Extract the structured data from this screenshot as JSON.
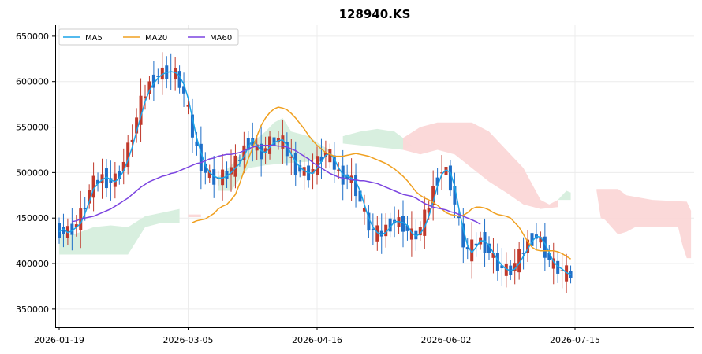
{
  "chart_data": {
    "type": "candlestick",
    "title": "128940.KS",
    "xlabel": "",
    "ylabel": "",
    "ylim": [
      330000,
      662000
    ],
    "grid": true,
    "legend_placement": "top-left",
    "x_tick_labels": [
      "2026-01-19",
      "2026-03-05",
      "2026-04-16",
      "2026-06-02",
      "2026-07-15"
    ],
    "x_tick_index": [
      0,
      30,
      60,
      90,
      120
    ],
    "y_ticks": [
      350000,
      400000,
      450000,
      500000,
      550000,
      600000,
      650000
    ],
    "y_tick_labels": [
      "350000",
      "400000",
      "450000",
      "500000",
      "550000",
      "600000",
      "650000"
    ],
    "colors": {
      "up": "#c0392b",
      "down": "#1f6fc8",
      "ma5": "#1aa3e8",
      "ma20": "#f0a020",
      "ma60": "#7b44e0",
      "cloud_bull": "#d6eedd",
      "cloud_bear": "#fbd7d7"
    },
    "legend": [
      {
        "name": "MA5",
        "color": "#1aa3e8"
      },
      {
        "name": "MA20",
        "color": "#f0a020"
      },
      {
        "name": "MA60",
        "color": "#7b44e0"
      }
    ],
    "series": [
      {
        "name": "MA5",
        "values": [
          435000,
          438000,
          434000,
          436000,
          440000,
          444000,
          455000,
          468000,
          482000,
          488000,
          492000,
          495000,
          492000,
          490000,
          494000,
          502000,
          514000,
          528000,
          545000,
          562000,
          578000,
          590000,
          598000,
          604000,
          608000,
          610000,
          611000,
          610000,
          606000,
          597000,
          582000,
          560000,
          538000,
          522000,
          508000,
          500000,
          496000,
          494000,
          494000,
          496000,
          500000,
          505000,
          510000,
          518000,
          528000,
          536000,
          530000,
          524000,
          522000,
          528000,
          533000,
          535000,
          536000,
          530000,
          520000,
          512000,
          506000,
          502000,
          500000,
          499000,
          505000,
          512000,
          519000,
          521000,
          515000,
          505000,
          498000,
          496000,
          494000,
          490000,
          480000,
          465000,
          450000,
          440000,
          434000,
          432000,
          434000,
          440000,
          446000,
          446000,
          445000,
          442000,
          434000,
          430000,
          433000,
          440000,
          452000,
          468000,
          485000,
          498000,
          503000,
          500000,
          485000,
          460000,
          438000,
          420000,
          412000,
          418000,
          425000,
          425000,
          420000,
          412000,
          404000,
          398000,
          394000,
          392000,
          394000,
          400000,
          408000,
          416000,
          424000,
          430000,
          429000,
          422000,
          412000,
          402000,
          397000,
          394000,
          390000,
          388000
        ],
        "first_index": 0
      },
      {
        "name": "MA20",
        "values": [
          445000,
          447000,
          448000,
          449000,
          452000,
          455000,
          460000,
          463000,
          465000,
          470000,
          476000,
          488000,
          502000,
          515000,
          527000,
          540000,
          552000,
          560000,
          566000,
          570000,
          572000,
          571000,
          569000,
          565000,
          560000,
          554000,
          548000,
          541000,
          535000,
          530000,
          526000,
          522000,
          520000,
          518000,
          518000,
          518000,
          519000,
          520000,
          521000,
          520000,
          519000,
          518000,
          516000,
          514000,
          512000,
          510000,
          507000,
          504000,
          500000,
          496000,
          491000,
          485000,
          479000,
          475000,
          472000,
          470000,
          467000,
          464000,
          460000,
          456000,
          454000,
          453000,
          452000,
          453000,
          456000,
          460000,
          462000,
          462000,
          461000,
          459000,
          456000,
          454000,
          453000,
          452000,
          450000,
          445000,
          440000,
          432000,
          424000,
          418000,
          415000,
          414000,
          414000,
          414000,
          414000,
          413000,
          411000,
          408000,
          405000
        ],
        "first_index": 31
      },
      {
        "name": "MA60",
        "values": [
          446000,
          447000,
          449000,
          450000,
          451000,
          452000,
          454000,
          456000,
          458000,
          460000,
          463000,
          466000,
          469000,
          472000,
          476000,
          480000,
          484000,
          487000,
          490000,
          492000,
          494000,
          496000,
          497000,
          499000,
          500000,
          502000,
          504000,
          506000,
          508000,
          510000,
          511000,
          513000,
          515000,
          516000,
          518000,
          519000,
          520000,
          520000,
          521000,
          522000,
          524000,
          526000,
          528000,
          529000,
          530000,
          530000,
          530000,
          530000,
          529000,
          529000,
          528000,
          526000,
          524000,
          521000,
          518000,
          515000,
          511000,
          508000,
          505000,
          502000,
          499000,
          497000,
          495000,
          494000,
          493000,
          492000,
          492000,
          491000,
          491000,
          490000,
          489000,
          488000,
          486000,
          484000,
          482000,
          480000,
          478000,
          476000,
          475000,
          474000,
          472000,
          469000,
          466000,
          464000,
          462000,
          461000,
          460000,
          459000,
          457000,
          456000,
          454000,
          452000,
          450000,
          448000,
          446000,
          443000
        ],
        "first_index": 3
      }
    ]
  }
}
